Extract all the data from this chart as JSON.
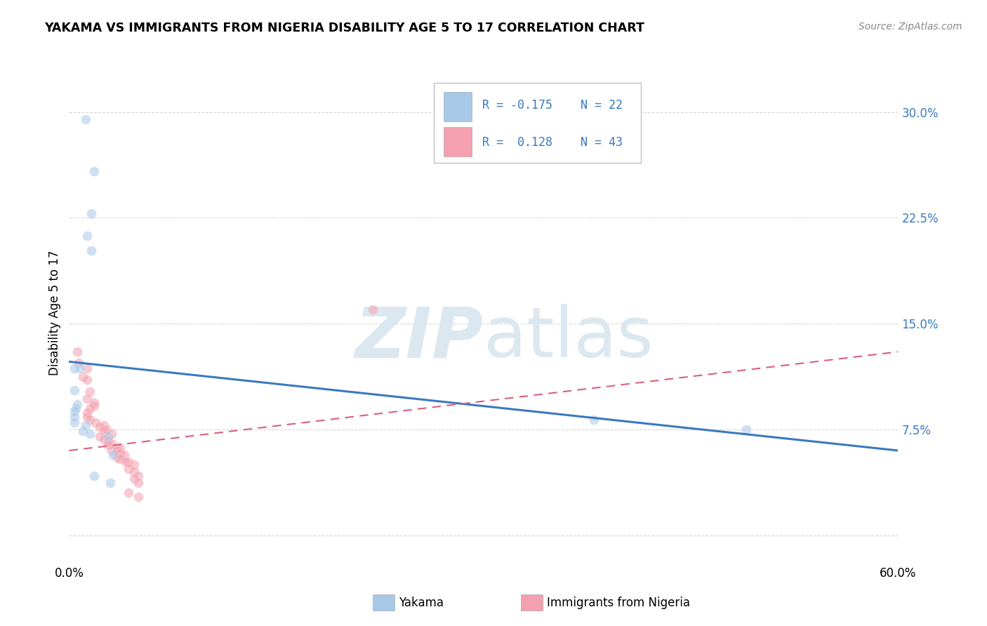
{
  "title": "YAKAMA VS IMMIGRANTS FROM NIGERIA DISABILITY AGE 5 TO 17 CORRELATION CHART",
  "source": "Source: ZipAtlas.com",
  "ylabel": "Disability Age 5 to 17",
  "xlim": [
    0.0,
    0.6
  ],
  "ylim": [
    -0.02,
    0.335
  ],
  "yticks": [
    0.0,
    0.075,
    0.15,
    0.225,
    0.3
  ],
  "ytick_labels": [
    "",
    "7.5%",
    "15.0%",
    "22.5%",
    "30.0%"
  ],
  "blue_color": "#a8c8e8",
  "pink_color": "#f4a0b0",
  "blue_line_color": "#3a7abf",
  "pink_line_color": "#d9607a",
  "blue_r": -0.175,
  "blue_n": 22,
  "pink_r": 0.128,
  "pink_n": 43,
  "blue_trend_x": [
    0.0,
    0.6
  ],
  "blue_trend_y_start": 0.123,
  "blue_trend_y_end": 0.06,
  "pink_trend_x": [
    0.0,
    0.6
  ],
  "pink_trend_y_start": 0.06,
  "pink_trend_y_end": 0.13,
  "yakama_x": [
    0.012,
    0.018,
    0.016,
    0.013,
    0.016,
    0.008,
    0.004,
    0.004,
    0.006,
    0.005,
    0.004,
    0.004,
    0.004,
    0.012,
    0.01,
    0.015,
    0.028,
    0.032,
    0.38,
    0.49,
    0.018,
    0.03
  ],
  "yakama_y": [
    0.295,
    0.258,
    0.228,
    0.212,
    0.202,
    0.118,
    0.118,
    0.103,
    0.093,
    0.09,
    0.088,
    0.084,
    0.08,
    0.078,
    0.074,
    0.072,
    0.07,
    0.057,
    0.082,
    0.075,
    0.042,
    0.037
  ],
  "nigeria_x": [
    0.006,
    0.007,
    0.013,
    0.01,
    0.013,
    0.015,
    0.013,
    0.018,
    0.018,
    0.015,
    0.013,
    0.013,
    0.015,
    0.019,
    0.025,
    0.022,
    0.027,
    0.025,
    0.031,
    0.022,
    0.025,
    0.028,
    0.031,
    0.028,
    0.035,
    0.037,
    0.031,
    0.035,
    0.037,
    0.04,
    0.035,
    0.037,
    0.043,
    0.041,
    0.047,
    0.043,
    0.047,
    0.05,
    0.047,
    0.05,
    0.22,
    0.043,
    0.05
  ],
  "nigeria_y": [
    0.13,
    0.122,
    0.118,
    0.112,
    0.11,
    0.102,
    0.097,
    0.094,
    0.092,
    0.09,
    0.087,
    0.084,
    0.082,
    0.08,
    0.078,
    0.077,
    0.075,
    0.074,
    0.072,
    0.07,
    0.068,
    0.067,
    0.065,
    0.064,
    0.062,
    0.062,
    0.06,
    0.06,
    0.058,
    0.057,
    0.055,
    0.054,
    0.052,
    0.052,
    0.05,
    0.047,
    0.045,
    0.042,
    0.04,
    0.037,
    0.16,
    0.03,
    0.027
  ],
  "scatter_size": 100,
  "scatter_alpha": 0.55,
  "background_color": "#ffffff",
  "grid_color": "#cccccc",
  "watermark_color": "#dce8f0"
}
